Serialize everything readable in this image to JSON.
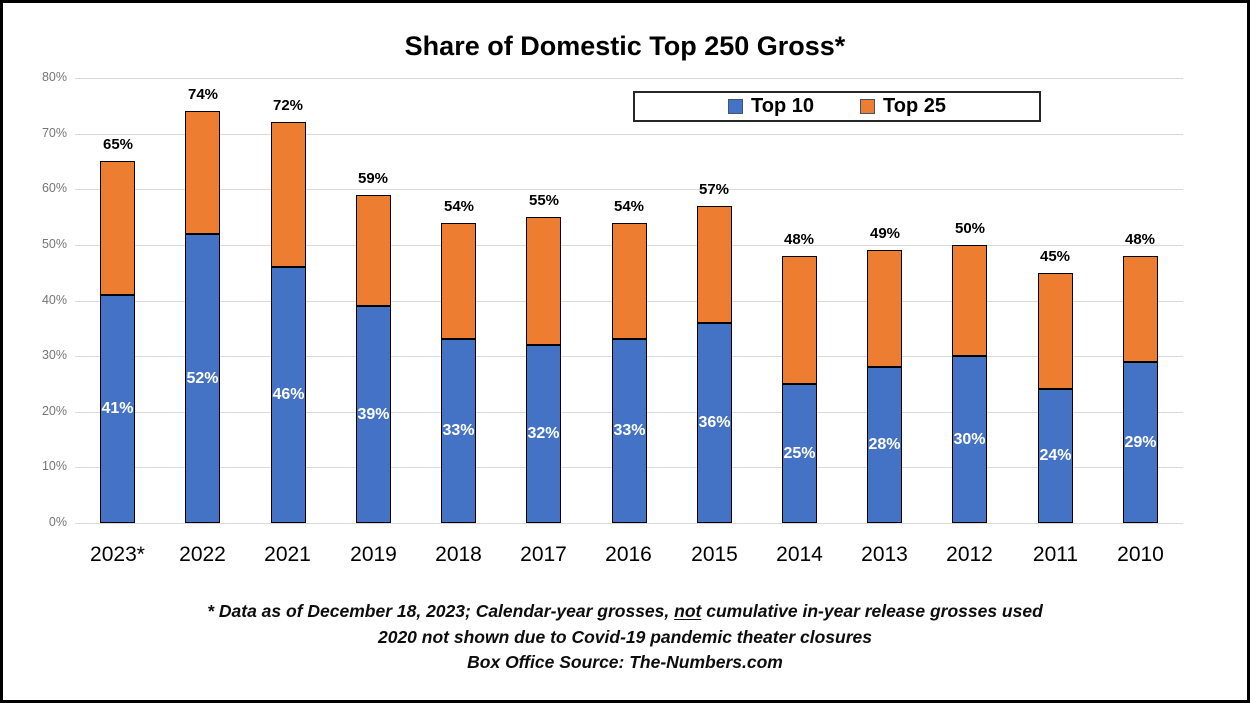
{
  "title": "Share of Domestic Top 250 Gross*",
  "legend": {
    "items": [
      {
        "label": "Top 10",
        "color": "#4472C4"
      },
      {
        "label": "Top 25",
        "color": "#ED7D31"
      }
    ]
  },
  "footnotes": {
    "line1_pre": "* Data as of December 18, 2023; Calendar-year grosses, ",
    "line1_underlined": "not",
    "line1_post": " cumulative in-year release grosses used",
    "line2": "2020 not shown due to Covid-19 pandemic theater closures",
    "line3": "Box Office Source: The-Numbers.com"
  },
  "chart_data": {
    "type": "bar",
    "stacked": true,
    "title": "Share of Domestic Top 250 Gross*",
    "categories": [
      "2023*",
      "2022",
      "2021",
      "2019",
      "2018",
      "2017",
      "2016",
      "2015",
      "2014",
      "2013",
      "2012",
      "2011",
      "2010"
    ],
    "series": [
      {
        "name": "Top 10",
        "color": "#4472C4",
        "values": [
          41,
          52,
          46,
          39,
          33,
          32,
          33,
          36,
          25,
          28,
          30,
          24,
          29
        ]
      },
      {
        "name": "Top 25",
        "color": "#ED7D31",
        "values": [
          65,
          74,
          72,
          59,
          54,
          55,
          54,
          57,
          48,
          49,
          50,
          45,
          48
        ],
        "note": "Top 25 values are cumulative share totals shown above each bar; drawn orange segment height = Top 25 minus Top 10"
      }
    ],
    "bar_inner_labels": [
      "41%",
      "52%",
      "46%",
      "39%",
      "33%",
      "32%",
      "33%",
      "36%",
      "25%",
      "28%",
      "30%",
      "24%",
      "29%"
    ],
    "bar_total_labels": [
      "65%",
      "74%",
      "72%",
      "59%",
      "54%",
      "55%",
      "54%",
      "57%",
      "48%",
      "49%",
      "50%",
      "45%",
      "48%"
    ],
    "xlabel": "",
    "ylabel": "",
    "ylim": [
      0,
      80
    ],
    "yticks": [
      "0%",
      "10%",
      "20%",
      "30%",
      "40%",
      "50%",
      "60%",
      "70%",
      "80%"
    ],
    "grid": true,
    "legend_position": "top-right-inside"
  },
  "colors": {
    "top10": "#4472C4",
    "top25": "#ED7D31",
    "gridline": "#D9D9D9",
    "tick_text": "#757575",
    "bar_border": "#000000"
  }
}
